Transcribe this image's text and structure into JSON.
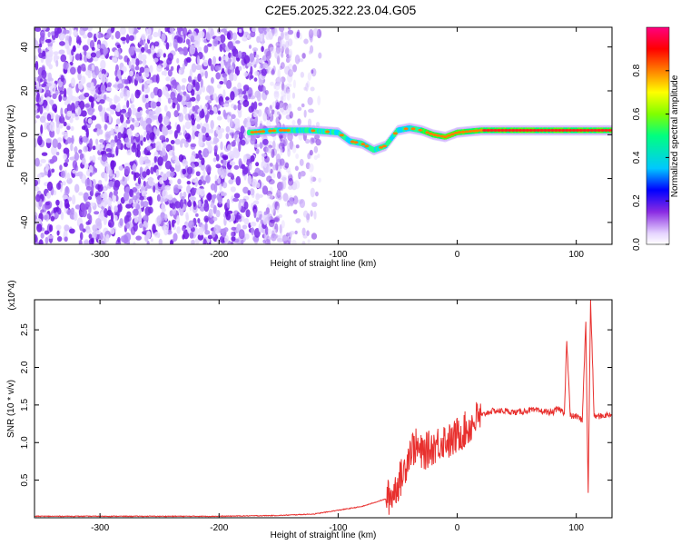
{
  "title": "C2E5.2025.322.23.04.G05",
  "chart_data": [
    {
      "type": "heatmap",
      "xlabel": "Height of straight line (km)",
      "ylabel": "Frequency (Hz)",
      "xlim": [
        -355,
        130
      ],
      "ylim": [
        -50,
        49
      ],
      "x_ticks": [
        -300,
        -200,
        -100,
        0,
        100
      ],
      "y_ticks": [
        -40,
        -20,
        0,
        20,
        40
      ],
      "colorbar": {
        "label": "Normalized spectral amplitude",
        "range": [
          0,
          1
        ],
        "ticks": [
          "0.0",
          "0.2",
          "0.4",
          "0.6",
          "0.8"
        ],
        "colors": [
          "#ffffff",
          "#e6d5ff",
          "#8a2be2",
          "#0000ff",
          "#00c8ff",
          "#00ff80",
          "#80ff00",
          "#ffff00",
          "#ff8000",
          "#ff0000",
          "#ff0080"
        ]
      },
      "noise_region_x": [
        -355,
        -140
      ],
      "signal_track": {
        "x": [
          -175,
          -150,
          -125,
          -100,
          -90,
          -80,
          -70,
          -60,
          -50,
          -40,
          -30,
          -20,
          -10,
          0,
          20,
          40,
          60,
          80,
          85,
          90,
          100,
          105,
          110,
          130
        ],
        "freq": [
          1,
          2,
          2,
          1,
          -3,
          -4,
          -7,
          -5,
          2,
          3,
          2,
          0,
          -1,
          1,
          2,
          2,
          2,
          2,
          2,
          2,
          2,
          2,
          2,
          2
        ]
      }
    },
    {
      "type": "line",
      "xlabel": "Height of straight line (km)",
      "ylabel": "SNR (10 * v/v)",
      "y_multiplier": "(x10^4)",
      "xlim": [
        -355,
        130
      ],
      "ylim": [
        0,
        2.9
      ],
      "x_ticks": [
        -300,
        -200,
        -100,
        0,
        100
      ],
      "y_ticks": [
        0.5,
        1.0,
        1.5,
        2.0,
        2.5
      ],
      "series": [
        {
          "color": "#e8302e",
          "x": [
            -355,
            -200,
            -150,
            -120,
            -100,
            -80,
            -70,
            -60,
            -55,
            -50,
            -45,
            -40,
            -35,
            -30,
            -25,
            -20,
            -15,
            -10,
            -5,
            0,
            5,
            10,
            15,
            20,
            25,
            30,
            40,
            50,
            60,
            70,
            80,
            85,
            90,
            92,
            95,
            100,
            105,
            108,
            110,
            112,
            115,
            120,
            130
          ],
          "y": [
            0.02,
            0.02,
            0.03,
            0.05,
            0.1,
            0.15,
            0.2,
            0.25,
            0.3,
            0.45,
            0.6,
            0.9,
            0.95,
            0.85,
            0.9,
            0.95,
            1.0,
            1.05,
            1.0,
            1.1,
            1.15,
            1.2,
            1.3,
            1.35,
            1.4,
            1.42,
            1.42,
            1.4,
            1.43,
            1.42,
            1.4,
            1.45,
            1.4,
            2.35,
            1.35,
            1.35,
            1.3,
            2.6,
            0.3,
            2.9,
            1.35,
            1.35,
            1.38
          ]
        }
      ]
    }
  ]
}
